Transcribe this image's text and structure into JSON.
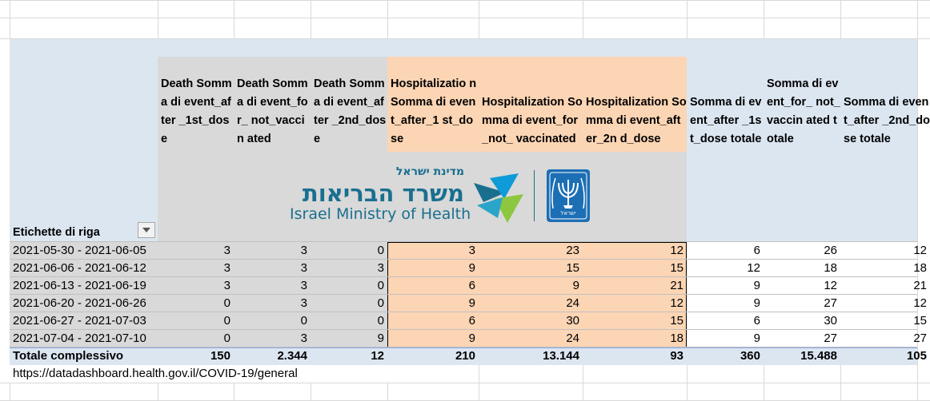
{
  "row_label_header": "Etichette di riga",
  "headers": [
    "Death Somma di event_after _1st_dose",
    "Death Somma di event_for_ not_vaccin ated",
    "Death Somma di event_after _2nd_dose",
    "Hospitalizatio n Somma di event_after_1 st_dose",
    "Hospitalization Somma di event_for_not_ vaccinated",
    "Hospitalization Somma di event_after_2n d_dose",
    "Somma di event_after _1st_dose totale",
    "Somma di event_for_ not_vaccin ated totale",
    "Somma di event_after _2nd_dose totale"
  ],
  "logo": {
    "hebrew_small": "מדינת ישראל",
    "hebrew_large": "משרד הבריאות",
    "english": "Israel Ministry of Health",
    "emblem_text": "ישראל"
  },
  "rows": [
    {
      "label": "2021-05-30 - 2021-06-05",
      "values": [
        "3",
        "3",
        "0",
        "3",
        "23",
        "12",
        "6",
        "26",
        "12"
      ]
    },
    {
      "label": "2021-06-06 - 2021-06-12",
      "values": [
        "3",
        "3",
        "3",
        "9",
        "15",
        "15",
        "12",
        "18",
        "18"
      ]
    },
    {
      "label": "2021-06-13 - 2021-06-19",
      "values": [
        "3",
        "3",
        "0",
        "6",
        "9",
        "21",
        "9",
        "12",
        "21"
      ]
    },
    {
      "label": "2021-06-20 - 2021-06-26",
      "values": [
        "0",
        "3",
        "0",
        "9",
        "24",
        "12",
        "9",
        "27",
        "12"
      ]
    },
    {
      "label": "2021-06-27 - 2021-07-03",
      "values": [
        "0",
        "0",
        "0",
        "6",
        "30",
        "15",
        "6",
        "30",
        "15"
      ]
    },
    {
      "label": "2021-07-04 - 2021-07-10",
      "values": [
        "0",
        "3",
        "9",
        "9",
        "24",
        "18",
        "9",
        "27",
        "27"
      ]
    }
  ],
  "total": {
    "label": "Totale complessivo",
    "values": [
      "150",
      "2.344",
      "12",
      "210",
      "13.144",
      "93",
      "360",
      "15.488",
      "105"
    ]
  },
  "source_url": "https://datadashboard.health.gov.il/COVID-19/general",
  "colors": {
    "pivot_header_blue": "#dce6f1",
    "death_gray": "#d9d9d9",
    "hospital_peach": "#fcd5b4",
    "gridline": "#d9d9d9",
    "total_row_blue": "#dce6f1",
    "logo_teal": "#1a6f8f",
    "logo_green": "#8dc63f",
    "emblem_blue": "#1c6fb5"
  }
}
